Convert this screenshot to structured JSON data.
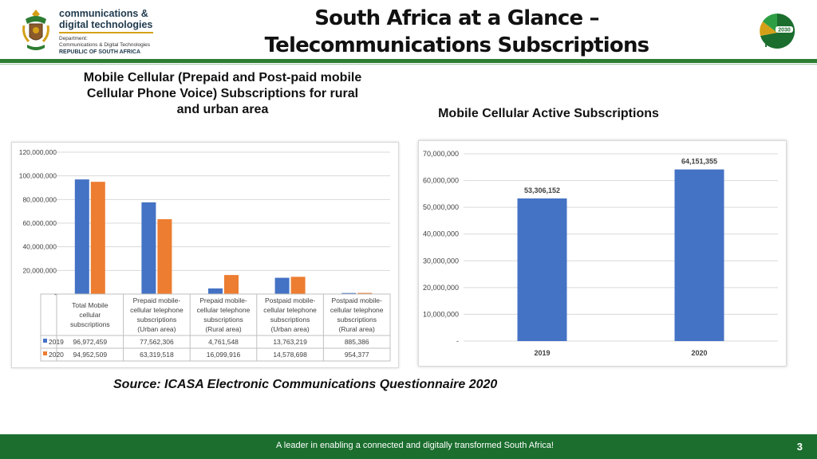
{
  "header": {
    "brand_line1": "communications &",
    "brand_line2": "digital technologies",
    "brand_line3": "Department:",
    "brand_line4": "Communications & Digital Technologies",
    "brand_line5": "REPUBLIC OF SOUTH AFRICA",
    "title_line1": "South Africa at a Glance –",
    "title_line2": "Telecommunications Subscriptions",
    "ndp_logo_text": "NDP",
    "ndp_logo_year": "2030",
    "icons": [
      "coat-of-arms-icon",
      "ndp-logo-icon"
    ]
  },
  "left_subtitle": {
    "line1": "Mobile Cellular (Prepaid and Post-paid mobile",
    "line2": "Cellular Phone Voice) Subscriptions for rural",
    "line3": "and urban area"
  },
  "right_subtitle": "Mobile Cellular Active Subscriptions",
  "source": "Source: ICASA Electronic Communications Questionnaire 2020",
  "footer": {
    "tagline": "A leader in enabling a connected and digitally transformed South Africa!",
    "page": "3"
  },
  "colors": {
    "series_2019": "#4472c4",
    "series_2020": "#ed7d31",
    "accent_green": "#2e7d32",
    "footer_green": "#1b6e2e"
  },
  "chart_data": [
    {
      "type": "bar",
      "title": "",
      "categories": [
        [
          "Total Mobile",
          "cellular",
          "subscriptions"
        ],
        [
          "Prepaid mobile-",
          "cellular telephone",
          "subscriptions",
          "(Urban area)"
        ],
        [
          "Prepaid mobile-",
          "cellular telephone",
          "subscriptions",
          "(Rural area)"
        ],
        [
          "Postpaid mobile-",
          "cellular telephone",
          "subscriptions",
          "(Urban area)"
        ],
        [
          "Postpaid mobile-",
          "cellular telephone",
          "subscriptions",
          "(Rural area)"
        ]
      ],
      "series": [
        {
          "name": "2019",
          "values": [
            96972459,
            77562306,
            4761548,
            13763219,
            885386
          ],
          "labels": [
            "96,972,459",
            "77,562,306",
            "4,761,548",
            "13,763,219",
            "885,386"
          ]
        },
        {
          "name": "2020",
          "values": [
            94952509,
            63319518,
            16099916,
            14578698,
            954377
          ],
          "labels": [
            "94,952,509",
            "63,319,518",
            "16,099,916",
            "14,578,698",
            "954,377"
          ]
        }
      ],
      "ylim": [
        0,
        120000000
      ],
      "yticks": [
        0,
        20000000,
        40000000,
        60000000,
        80000000,
        100000000,
        120000000
      ],
      "ytick_labels": [
        "-",
        "20,000,000",
        "40,000,000",
        "60,000,000",
        "80,000,000",
        "100,000,000",
        "120,000,000"
      ],
      "grid": true,
      "legend": "data-table"
    },
    {
      "type": "bar",
      "title": "",
      "categories": [
        "2019",
        "2020"
      ],
      "values": [
        53306152,
        64151355
      ],
      "data_labels": [
        "53,306,152",
        "64,151,355"
      ],
      "ylim": [
        0,
        70000000
      ],
      "yticks": [
        0,
        10000000,
        20000000,
        30000000,
        40000000,
        50000000,
        60000000,
        70000000
      ],
      "ytick_labels": [
        "-",
        "10,000,000",
        "20,000,000",
        "30,000,000",
        "40,000,000",
        "50,000,000",
        "60,000,000",
        "70,000,000"
      ],
      "grid": true
    }
  ]
}
